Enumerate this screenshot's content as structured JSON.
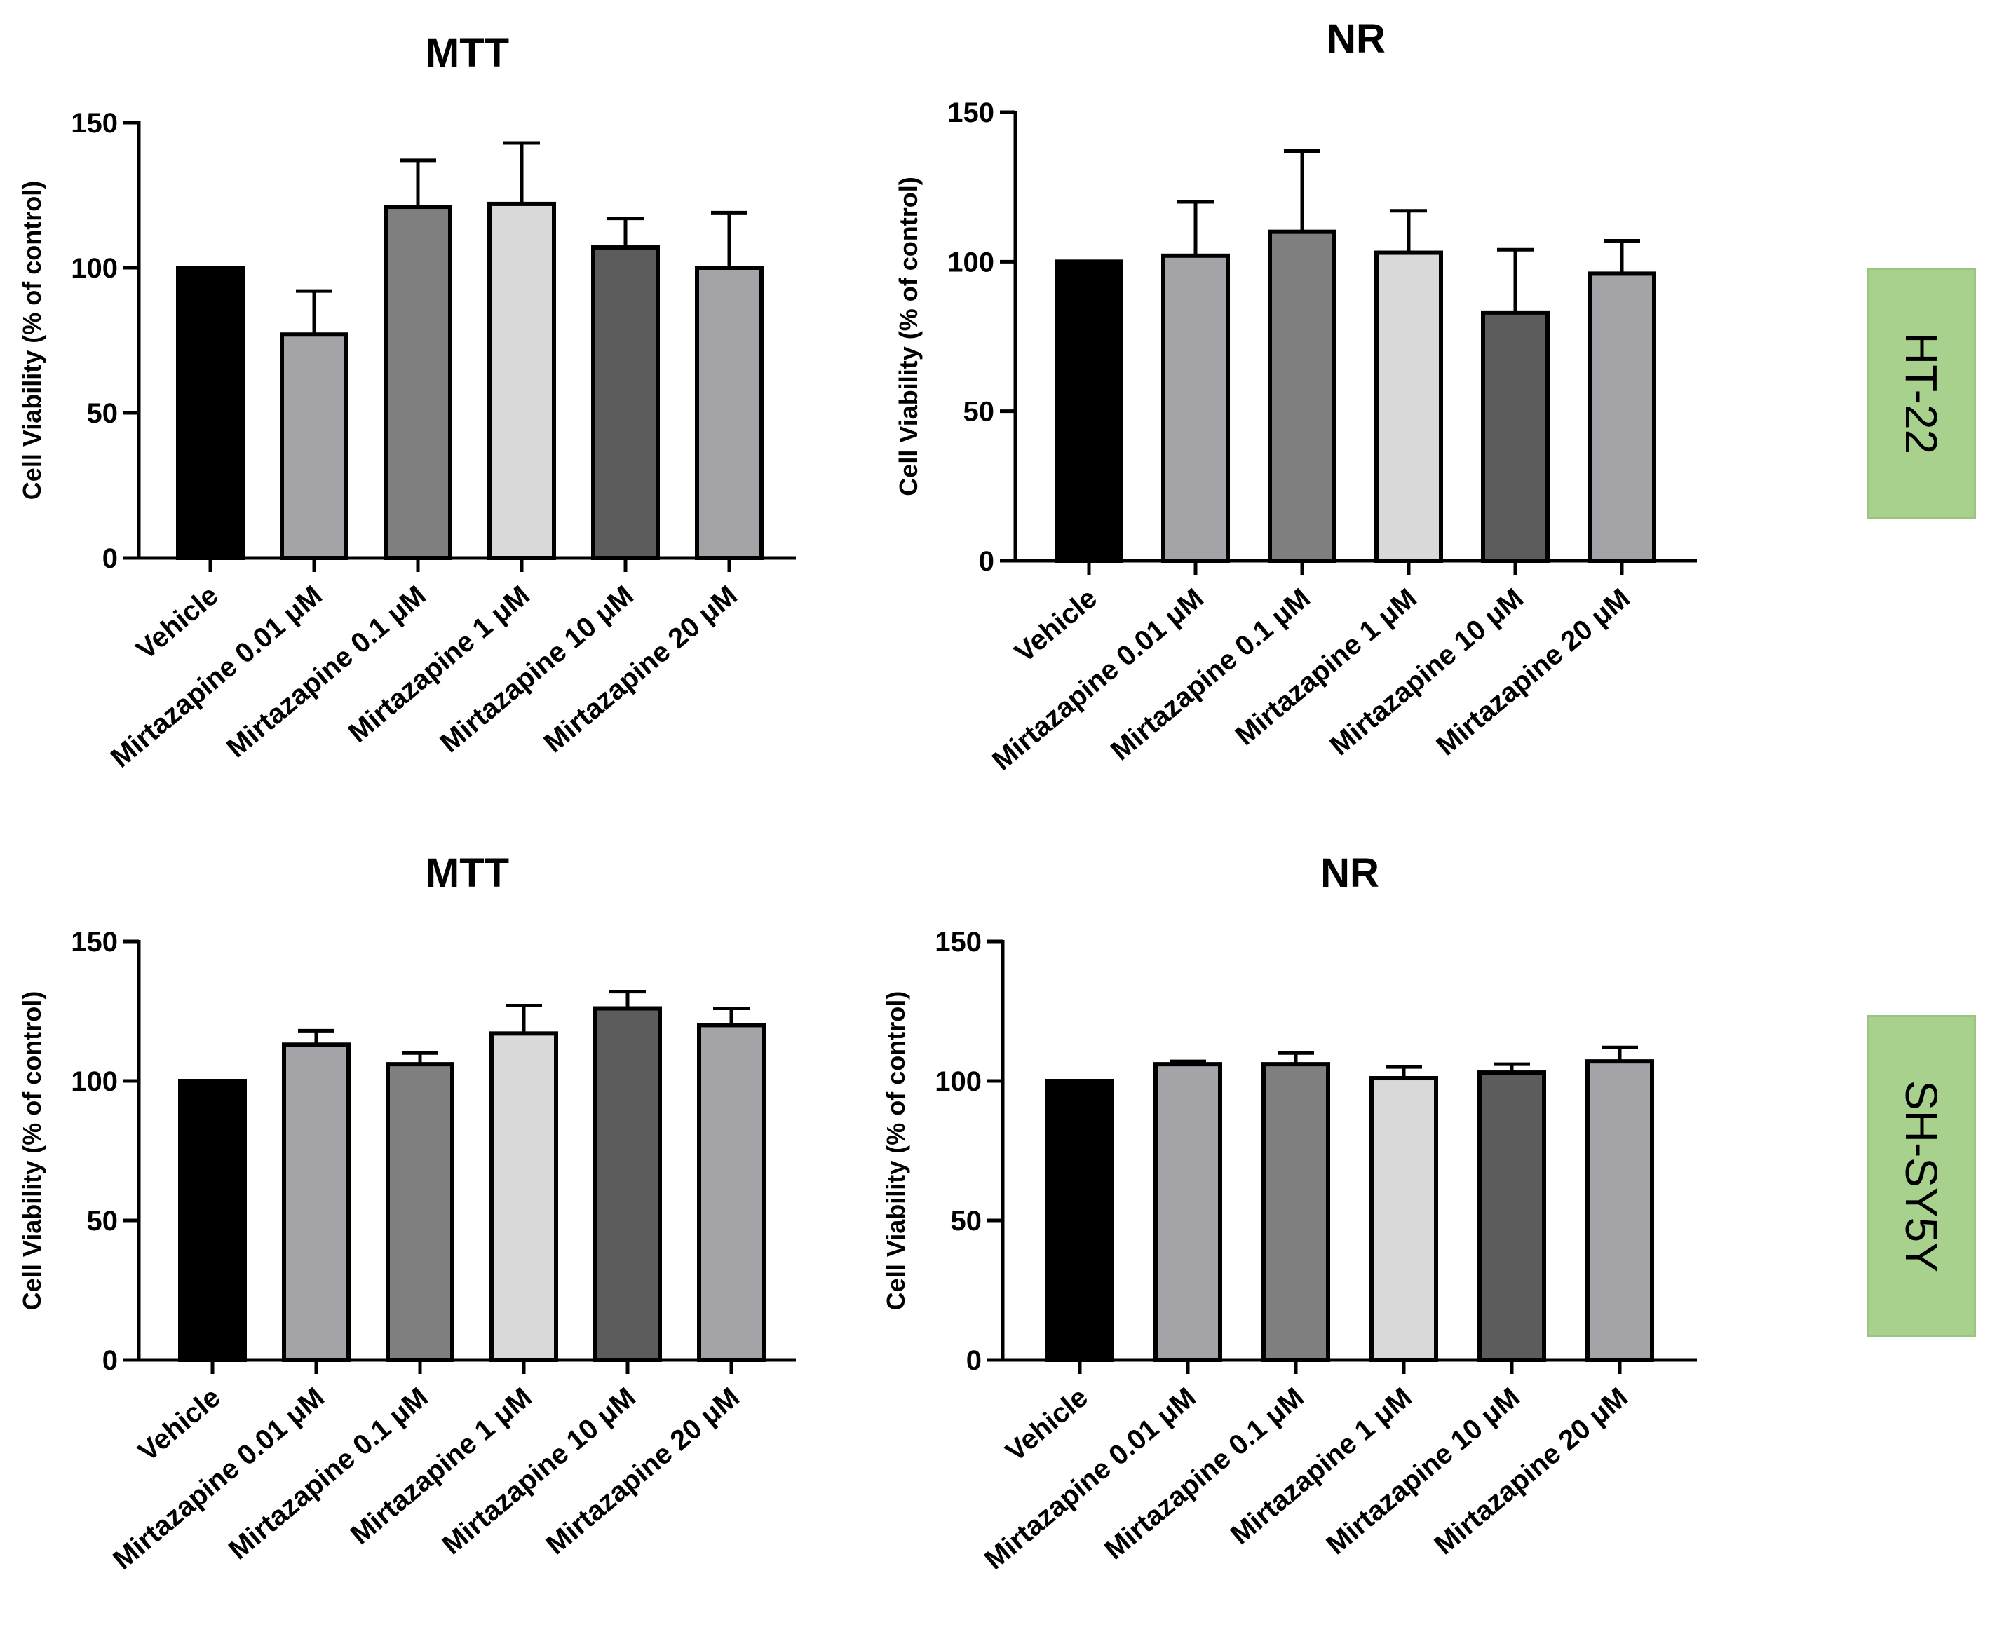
{
  "figure": {
    "row_labels": [
      "HT-22",
      "SH-SY5Y"
    ],
    "label_color": "#a9d18e"
  },
  "chart_data": [
    {
      "type": "bar",
      "title": "MTT",
      "ylabel": "Cell Viability (% of control)",
      "xlabel": "",
      "ylim": [
        0,
        150
      ],
      "yticks": [
        0,
        50,
        100,
        150
      ],
      "categories": [
        "Vehicle",
        "Mirtazapine 0.01 μM",
        "Mirtazapine 0.1 μM",
        "Mirtazapine 1 μM",
        "Mirtazapine 10 μM",
        "Mirtazapine 20 μM"
      ],
      "values": [
        100,
        77,
        121,
        122,
        107,
        100
      ],
      "errors": [
        0,
        15,
        16,
        21,
        10,
        19
      ],
      "colors": [
        "#000000",
        "#a3a3a8",
        "#7f7f7f",
        "#d9d9d9",
        "#5c5c5c",
        "#a3a3a8"
      ],
      "row": "HT-22"
    },
    {
      "type": "bar",
      "title": "NR",
      "ylabel": "Cell Viability (% of control)",
      "xlabel": "",
      "ylim": [
        0,
        150
      ],
      "yticks": [
        0,
        50,
        100,
        150
      ],
      "categories": [
        "Vehicle",
        "Mirtazapine 0.01 μM",
        "Mirtazapine 0.1 μM",
        "Mirtazapine 1 μM",
        "Mirtazapine 10 μM",
        "Mirtazapine 20 μM"
      ],
      "values": [
        100,
        102,
        110,
        103,
        83,
        96
      ],
      "errors": [
        0,
        18,
        27,
        14,
        21,
        11
      ],
      "colors": [
        "#000000",
        "#a3a3a8",
        "#7f7f7f",
        "#d9d9d9",
        "#5c5c5c",
        "#a3a3a8"
      ],
      "row": "HT-22"
    },
    {
      "type": "bar",
      "title": "MTT",
      "ylabel": "Cell Viability (% of control)",
      "xlabel": "",
      "ylim": [
        0,
        150
      ],
      "yticks": [
        0,
        50,
        100,
        150
      ],
      "categories": [
        "Vehicle",
        "Mirtazapine 0.01 μM",
        "Mirtazapine 0.1 μM",
        "Mirtazapine 1 μM",
        "Mirtazapine 10 μM",
        "Mirtazapine 20 μM"
      ],
      "values": [
        100,
        113,
        106,
        117,
        126,
        120
      ],
      "errors": [
        0,
        5,
        4,
        10,
        6,
        6
      ],
      "colors": [
        "#000000",
        "#a3a3a8",
        "#7f7f7f",
        "#d9d9d9",
        "#5c5c5c",
        "#a3a3a8"
      ],
      "row": "SH-SY5Y"
    },
    {
      "type": "bar",
      "title": "NR",
      "ylabel": "Cell Viability (% of control)",
      "xlabel": "",
      "ylim": [
        0,
        150
      ],
      "yticks": [
        0,
        50,
        100,
        150
      ],
      "categories": [
        "Vehicle",
        "Mirtazapine 0.01 μM",
        "Mirtazapine 0.1 μM",
        "Mirtazapine 1 μM",
        "Mirtazapine 10 μM",
        "Mirtazapine 20 μM"
      ],
      "values": [
        100,
        106,
        106,
        101,
        103,
        107
      ],
      "errors": [
        0,
        1,
        4,
        4,
        3,
        5
      ],
      "colors": [
        "#000000",
        "#a3a3a8",
        "#7f7f7f",
        "#d9d9d9",
        "#5c5c5c",
        "#a3a3a8"
      ],
      "row": "SH-SY5Y"
    }
  ]
}
